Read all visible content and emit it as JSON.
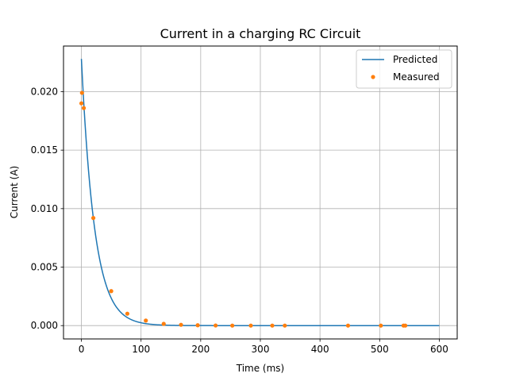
{
  "chart_data": {
    "type": "line",
    "title": "Current in a charging RC Circuit",
    "xlabel": "Time (ms)",
    "ylabel": "Current (A)",
    "xlim": [
      -30,
      630
    ],
    "ylim": [
      -0.00114,
      0.0239
    ],
    "xticks": [
      0,
      100,
      200,
      300,
      400,
      500,
      600
    ],
    "xtick_labels": [
      "0",
      "100",
      "200",
      "300",
      "400",
      "500",
      "600"
    ],
    "yticks": [
      0.0,
      0.005,
      0.01,
      0.015,
      0.02
    ],
    "ytick_labels": [
      "0.000",
      "0.005",
      "0.010",
      "0.015",
      "0.020"
    ],
    "grid": true,
    "legend_position": "top-right",
    "series": [
      {
        "name": "Predicted",
        "type": "line",
        "color": "#1f77b4",
        "model": "exponential-decay",
        "i0": 0.0228,
        "tau_ms": 22,
        "x_range": [
          0,
          600
        ]
      },
      {
        "name": "Measured",
        "type": "scatter",
        "color": "#ff7f0e",
        "points": [
          [
            0,
            0.019
          ],
          [
            1,
            0.0199
          ],
          [
            4,
            0.0186
          ],
          [
            20,
            0.0092
          ],
          [
            50,
            0.00295
          ],
          [
            77,
            0.00102
          ],
          [
            108,
            0.00043
          ],
          [
            138,
            0.00015
          ],
          [
            167,
            7e-05
          ],
          [
            195,
            3e-05
          ],
          [
            225,
            1e-05
          ],
          [
            253,
            0.0
          ],
          [
            284,
            0.0
          ],
          [
            320,
            0.0
          ],
          [
            341,
            0.0
          ],
          [
            447,
            0.0
          ],
          [
            502,
            0.0
          ],
          [
            540,
            0.0
          ],
          [
            543,
            0.0
          ]
        ]
      }
    ]
  }
}
